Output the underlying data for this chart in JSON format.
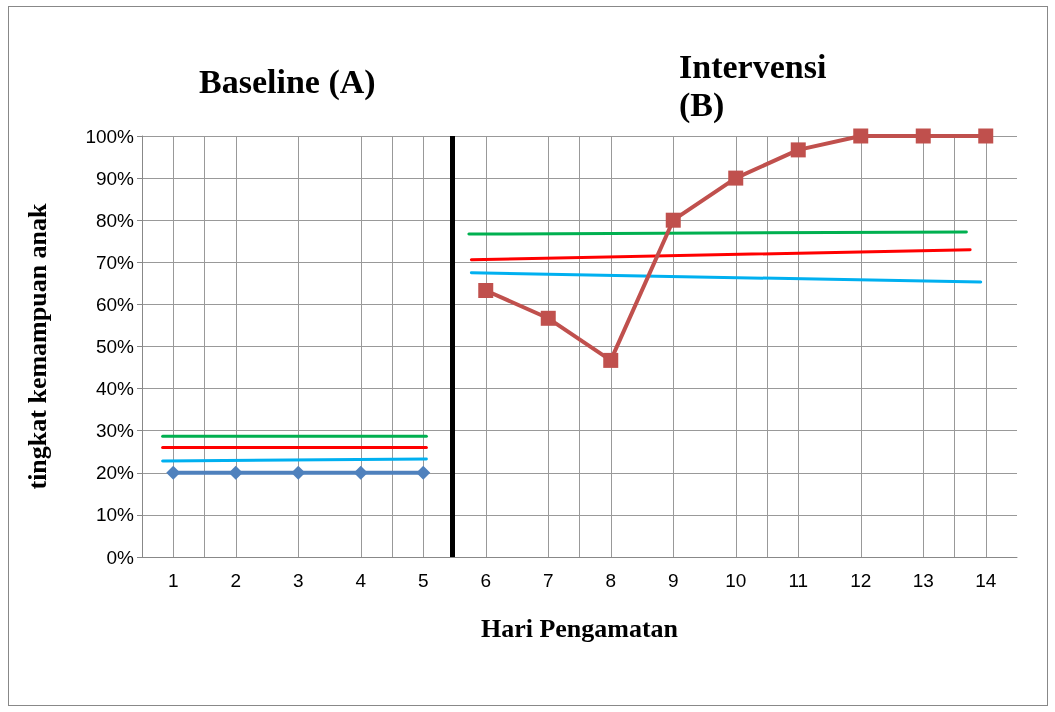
{
  "chart_data": {
    "type": "line",
    "xlabel": "Hari Pengamatan",
    "ylabel": "tingkat kemampuan anak",
    "annotations": [
      "Baseline (A)",
      "Intervensi\n(B)"
    ],
    "xlim": [
      0.5,
      14.5
    ],
    "xticks": [
      1,
      2,
      3,
      4,
      5,
      6,
      7,
      8,
      9,
      10,
      11,
      12,
      13,
      14
    ],
    "ylim": [
      0,
      100
    ],
    "yticks": [
      {
        "value": 0,
        "label": "0%"
      },
      {
        "value": 10,
        "label": "10%"
      },
      {
        "value": 20,
        "label": "20%"
      },
      {
        "value": 30,
        "label": "30%"
      },
      {
        "value": 40,
        "label": "40%"
      },
      {
        "value": 50,
        "label": "50%"
      },
      {
        "value": 60,
        "label": "60%"
      },
      {
        "value": 70,
        "label": "70%"
      },
      {
        "value": 80,
        "label": "80%"
      },
      {
        "value": 90,
        "label": "90%"
      },
      {
        "value": 100,
        "label": "100%"
      }
    ],
    "grid": true,
    "line_style": "solid",
    "ref_lines": [
      {
        "axis": "x",
        "value": 5.47,
        "color": "#000000"
      }
    ],
    "series": [
      {
        "color": "#4f81bd",
        "marker": "diamond",
        "x": [
          1,
          2,
          3,
          4,
          5
        ],
        "values": [
          20,
          20,
          20,
          20,
          20
        ]
      },
      {
        "color": "#c0504d",
        "marker": "square",
        "x": [
          6,
          7,
          8,
          9,
          10,
          11,
          12,
          13,
          14
        ],
        "values": [
          63.3,
          56.7,
          46.7,
          80,
          90,
          96.7,
          100,
          100,
          100
        ]
      },
      {
        "color": "#00b050",
        "marker": "none",
        "x": [
          0.83,
          5.05
        ],
        "values": [
          28.7,
          28.7
        ]
      },
      {
        "color": "#ff0000",
        "marker": "none",
        "x": [
          0.83,
          5.05
        ],
        "values": [
          26,
          26
        ]
      },
      {
        "color": "#00b0f0",
        "marker": "none",
        "x": [
          0.83,
          5.05
        ],
        "values": [
          22.8,
          23.3
        ]
      },
      {
        "color": "#00b050",
        "marker": "none",
        "x": [
          5.73,
          13.69
        ],
        "values": [
          76.7,
          77.2
        ]
      },
      {
        "color": "#ff0000",
        "marker": "none",
        "x": [
          5.77,
          13.75
        ],
        "values": [
          70.6,
          73
        ]
      },
      {
        "color": "#00b0f0",
        "marker": "none",
        "x": [
          5.77,
          13.92
        ],
        "values": [
          67.5,
          65.3
        ]
      }
    ]
  }
}
